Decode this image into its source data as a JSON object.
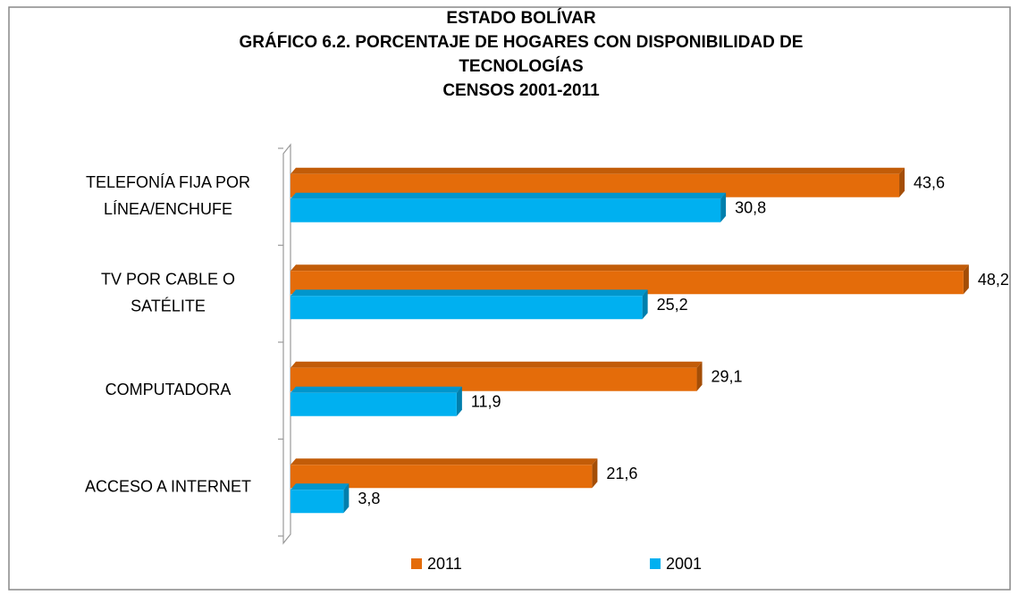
{
  "chart_data": {
    "type": "hbar3d",
    "title": [
      "ESTADO BOLÍVAR",
      "GRÁFICO 6.2. PORCENTAJE DE HOGARES CON DISPONIBILIDAD  DE",
      "TECNOLOGÍAS",
      "CENSOS 2001-2011"
    ],
    "categories": [
      [
        "TELEFONÍA FIJA POR",
        "LÍNEA/ENCHUFE"
      ],
      [
        "TV POR CABLE O",
        "SATÉLITE"
      ],
      [
        "COMPUTADORA"
      ],
      [
        "ACCESO A INTERNET"
      ]
    ],
    "series": [
      {
        "name": "2011",
        "color": "#e46c0a",
        "values": [
          43.6,
          48.2,
          29.1,
          21.6
        ],
        "value_labels": [
          "43,6",
          "48,2",
          "29,1",
          "21,6"
        ]
      },
      {
        "name": "2001",
        "color": "#00b0f0",
        "values": [
          30.8,
          25.2,
          11.9,
          3.8
        ],
        "value_labels": [
          "30,8",
          "25,2",
          "11,9",
          "3,8"
        ]
      }
    ],
    "xlim": [
      0,
      50
    ],
    "legend": "bottom"
  }
}
